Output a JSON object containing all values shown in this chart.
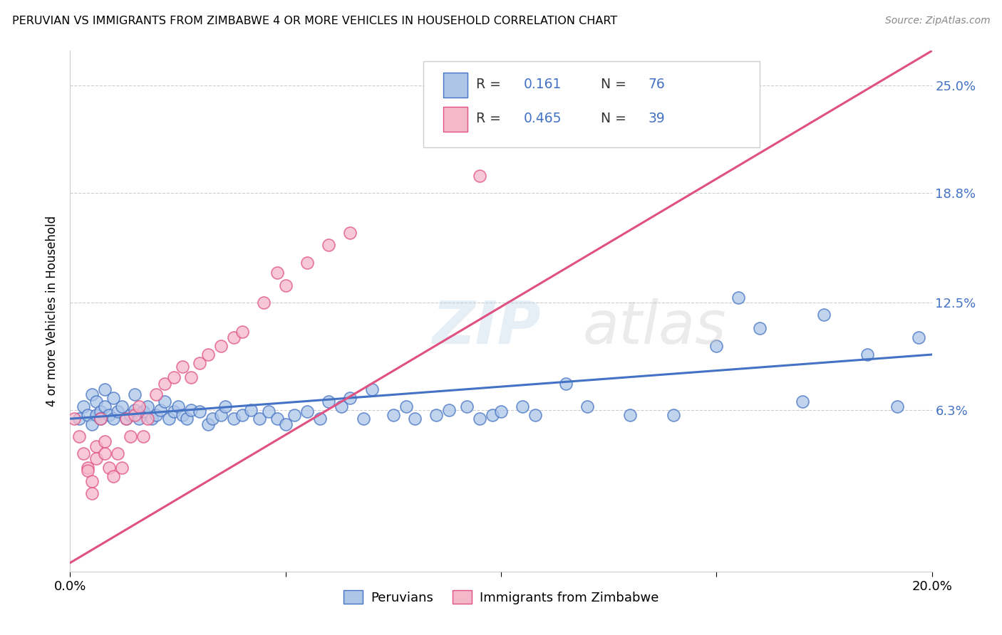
{
  "title": "PERUVIAN VS IMMIGRANTS FROM ZIMBABWE 4 OR MORE VEHICLES IN HOUSEHOLD CORRELATION CHART",
  "source": "Source: ZipAtlas.com",
  "ylabel": "4 or more Vehicles in Household",
  "r1": "0.161",
  "n1": "76",
  "r2": "0.465",
  "n2": "39",
  "xmin": 0.0,
  "xmax": 0.2,
  "ymin": -0.03,
  "ymax": 0.27,
  "yticks": [
    0.063,
    0.125,
    0.188,
    0.25
  ],
  "ytick_labels": [
    "6.3%",
    "12.5%",
    "18.8%",
    "25.0%"
  ],
  "xticks": [
    0.0,
    0.05,
    0.1,
    0.15,
    0.2
  ],
  "xtick_labels": [
    "0.0%",
    "",
    "",
    "",
    "20.0%"
  ],
  "color_blue": "#adc6e8",
  "color_pink": "#f5b8cb",
  "line_blue": "#4472c4",
  "line_pink": "#e05080",
  "blue_line_x0": 0.0,
  "blue_line_y0": 0.058,
  "blue_line_x1": 0.2,
  "blue_line_y1": 0.095,
  "pink_line_x0": 0.0,
  "pink_line_y0": -0.025,
  "pink_line_x1": 0.2,
  "pink_line_y1": 0.27,
  "blue_x": [
    0.002,
    0.003,
    0.004,
    0.005,
    0.005,
    0.006,
    0.006,
    0.007,
    0.007,
    0.008,
    0.008,
    0.009,
    0.01,
    0.01,
    0.011,
    0.012,
    0.013,
    0.014,
    0.015,
    0.015,
    0.016,
    0.017,
    0.018,
    0.019,
    0.02,
    0.021,
    0.022,
    0.023,
    0.024,
    0.025,
    0.026,
    0.027,
    0.028,
    0.03,
    0.032,
    0.033,
    0.035,
    0.036,
    0.038,
    0.04,
    0.042,
    0.044,
    0.046,
    0.048,
    0.05,
    0.052,
    0.055,
    0.058,
    0.06,
    0.063,
    0.065,
    0.068,
    0.07,
    0.075,
    0.078,
    0.08,
    0.085,
    0.088,
    0.092,
    0.095,
    0.098,
    0.1,
    0.105,
    0.108,
    0.115,
    0.12,
    0.13,
    0.14,
    0.15,
    0.155,
    0.16,
    0.17,
    0.175,
    0.185,
    0.192,
    0.197
  ],
  "blue_y": [
    0.058,
    0.065,
    0.06,
    0.055,
    0.072,
    0.06,
    0.068,
    0.062,
    0.058,
    0.065,
    0.075,
    0.06,
    0.058,
    0.07,
    0.062,
    0.065,
    0.058,
    0.06,
    0.063,
    0.072,
    0.058,
    0.062,
    0.065,
    0.058,
    0.06,
    0.063,
    0.068,
    0.058,
    0.062,
    0.065,
    0.06,
    0.058,
    0.063,
    0.062,
    0.055,
    0.058,
    0.06,
    0.065,
    0.058,
    0.06,
    0.063,
    0.058,
    0.062,
    0.058,
    0.055,
    0.06,
    0.062,
    0.058,
    0.068,
    0.065,
    0.07,
    0.058,
    0.075,
    0.06,
    0.065,
    0.058,
    0.06,
    0.063,
    0.065,
    0.058,
    0.06,
    0.062,
    0.065,
    0.06,
    0.078,
    0.065,
    0.06,
    0.06,
    0.1,
    0.128,
    0.11,
    0.068,
    0.118,
    0.095,
    0.065,
    0.105
  ],
  "pink_x": [
    0.001,
    0.002,
    0.003,
    0.004,
    0.004,
    0.005,
    0.005,
    0.006,
    0.006,
    0.007,
    0.008,
    0.008,
    0.009,
    0.01,
    0.011,
    0.012,
    0.013,
    0.014,
    0.015,
    0.016,
    0.017,
    0.018,
    0.02,
    0.022,
    0.024,
    0.026,
    0.028,
    0.03,
    0.032,
    0.035,
    0.038,
    0.04,
    0.045,
    0.048,
    0.05,
    0.055,
    0.06,
    0.065,
    0.095
  ],
  "pink_y": [
    0.058,
    0.048,
    0.038,
    0.03,
    0.028,
    0.022,
    0.015,
    0.042,
    0.035,
    0.058,
    0.045,
    0.038,
    0.03,
    0.025,
    0.038,
    0.03,
    0.058,
    0.048,
    0.06,
    0.065,
    0.048,
    0.058,
    0.072,
    0.078,
    0.082,
    0.088,
    0.082,
    0.09,
    0.095,
    0.1,
    0.105,
    0.108,
    0.125,
    0.142,
    0.135,
    0.148,
    0.158,
    0.165,
    0.198
  ]
}
